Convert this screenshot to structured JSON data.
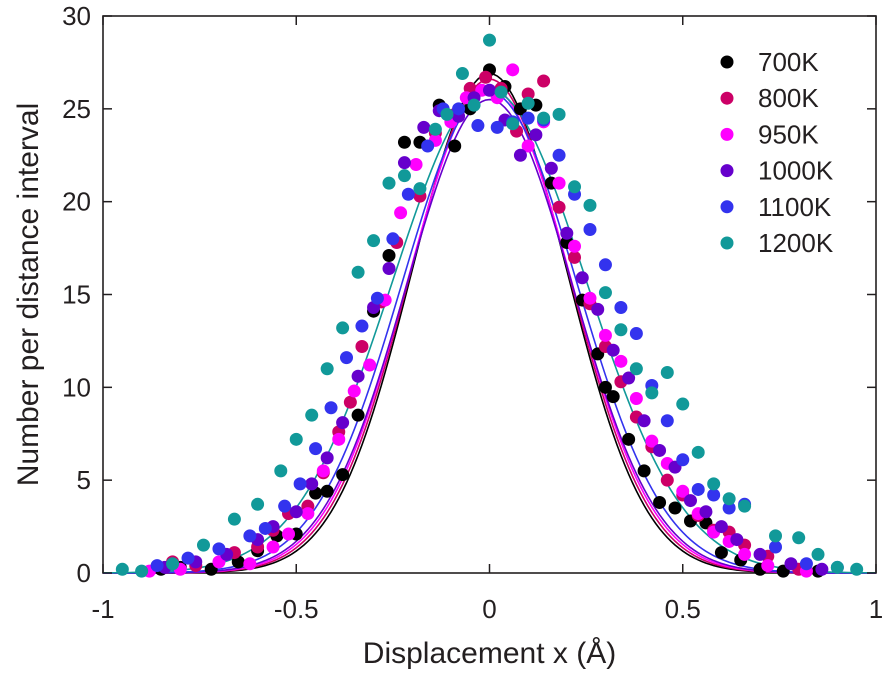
{
  "chart_data": {
    "type": "scatter",
    "xlabel": "Displacement x (Å)",
    "ylabel": "Number per distance interval",
    "xlim": [
      -1,
      1
    ],
    "ylim": [
      0,
      30
    ],
    "xticks": [
      "-1",
      "-0.5",
      "0",
      "0.5",
      "1"
    ],
    "yticks": [
      "0",
      "5",
      "10",
      "15",
      "20",
      "25",
      "30"
    ],
    "grid": false,
    "legend_position": "top-right",
    "series": [
      {
        "name": "700K",
        "color": "#000000",
        "amplitude": 26.9,
        "sigma": 0.2,
        "x": [
          -0.85,
          -0.8,
          -0.72,
          -0.65,
          -0.6,
          -0.55,
          -0.5,
          -0.45,
          -0.42,
          -0.38,
          -0.34,
          -0.3,
          -0.26,
          -0.22,
          -0.18,
          -0.13,
          -0.09,
          -0.05,
          0.0,
          0.04,
          0.08,
          0.12,
          0.16,
          0.2,
          0.24,
          0.28,
          0.3,
          0.32,
          0.36,
          0.4,
          0.44,
          0.48,
          0.52,
          0.56,
          0.6,
          0.65,
          0.7,
          0.76,
          0.85
        ],
        "y": [
          0.2,
          0.3,
          0.2,
          0.6,
          1.2,
          2.0,
          2.1,
          4.3,
          4.4,
          5.3,
          8.5,
          14.1,
          17.1,
          23.2,
          23.2,
          25.2,
          23.0,
          25.0,
          27.1,
          26.2,
          25.0,
          25.2,
          21.0,
          17.8,
          14.7,
          11.8,
          10.0,
          9.5,
          7.2,
          5.5,
          3.8,
          3.5,
          2.8,
          2.7,
          1.1,
          0.7,
          0.2,
          0.1,
          0.1
        ]
      },
      {
        "name": "800K",
        "color": "#cc0066",
        "amplitude": 26.6,
        "sigma": 0.205,
        "x": [
          -0.82,
          -0.76,
          -0.66,
          -0.6,
          -0.56,
          -0.52,
          -0.47,
          -0.43,
          -0.39,
          -0.36,
          -0.33,
          -0.28,
          -0.24,
          -0.18,
          -0.14,
          -0.09,
          -0.05,
          -0.01,
          0.03,
          0.07,
          0.1,
          0.14,
          0.18,
          0.22,
          0.26,
          0.3,
          0.34,
          0.38,
          0.42,
          0.46,
          0.5,
          0.54,
          0.58,
          0.62,
          0.66,
          0.72,
          0.8
        ],
        "y": [
          0.6,
          0.4,
          1.1,
          1.4,
          2.3,
          3.2,
          3.6,
          5.4,
          7.6,
          9.2,
          12.2,
          14.6,
          17.8,
          20.3,
          23.7,
          24.7,
          26.1,
          26.7,
          26.1,
          23.8,
          25.8,
          26.5,
          19.7,
          17.0,
          14.5,
          12.2,
          10.3,
          8.4,
          6.8,
          5.0,
          4.2,
          3.1,
          2.3,
          2.2,
          1.5,
          0.9,
          0.2
        ]
      },
      {
        "name": "950K",
        "color": "#ff00ff",
        "amplitude": 26.2,
        "sigma": 0.21,
        "x": [
          -0.88,
          -0.8,
          -0.7,
          -0.62,
          -0.56,
          -0.52,
          -0.47,
          -0.43,
          -0.39,
          -0.35,
          -0.31,
          -0.27,
          -0.23,
          -0.19,
          -0.14,
          -0.1,
          -0.06,
          -0.02,
          0.02,
          0.06,
          0.1,
          0.14,
          0.18,
          0.22,
          0.26,
          0.3,
          0.34,
          0.38,
          0.42,
          0.46,
          0.5,
          0.54,
          0.58,
          0.62,
          0.66,
          0.72,
          0.82
        ],
        "y": [
          0.1,
          0.2,
          0.6,
          0.5,
          1.4,
          2.1,
          3.2,
          5.5,
          7.2,
          9.8,
          11.2,
          14.7,
          19.4,
          22.0,
          23.3,
          24.3,
          25.6,
          26.0,
          25.6,
          27.1,
          23.0,
          24.3,
          21.0,
          17.6,
          14.8,
          12.8,
          11.4,
          9.4,
          7.1,
          5.9,
          4.4,
          3.2,
          2.2,
          1.7,
          1.0,
          0.4,
          0.1
        ]
      },
      {
        "name": "1000K",
        "color": "#6600cc",
        "amplitude": 25.5,
        "sigma": 0.215,
        "x": [
          -0.84,
          -0.76,
          -0.68,
          -0.6,
          -0.56,
          -0.5,
          -0.46,
          -0.42,
          -0.38,
          -0.34,
          -0.3,
          -0.26,
          -0.22,
          -0.17,
          -0.13,
          -0.08,
          -0.04,
          0.0,
          0.04,
          0.08,
          0.12,
          0.16,
          0.2,
          0.24,
          0.28,
          0.32,
          0.36,
          0.4,
          0.44,
          0.48,
          0.52,
          0.56,
          0.6,
          0.64,
          0.7,
          0.78,
          0.86
        ],
        "y": [
          0.3,
          0.6,
          1.0,
          1.8,
          2.5,
          3.3,
          4.8,
          6.2,
          8.1,
          10.6,
          14.3,
          16.4,
          22.1,
          24.0,
          24.9,
          24.6,
          25.6,
          26.0,
          24.4,
          22.5,
          23.6,
          21.8,
          18.3,
          15.9,
          14.2,
          12.0,
          10.5,
          8.2,
          6.6,
          5.7,
          3.9,
          3.3,
          2.5,
          1.8,
          1.0,
          0.5,
          0.2
        ]
      },
      {
        "name": "1100K",
        "color": "#3333ee",
        "amplitude": 25.9,
        "sigma": 0.225,
        "x": [
          -0.86,
          -0.78,
          -0.7,
          -0.62,
          -0.58,
          -0.53,
          -0.49,
          -0.45,
          -0.41,
          -0.37,
          -0.33,
          -0.29,
          -0.25,
          -0.21,
          -0.16,
          -0.12,
          -0.08,
          -0.03,
          0.02,
          0.06,
          0.1,
          0.14,
          0.18,
          0.22,
          0.26,
          0.3,
          0.34,
          0.38,
          0.42,
          0.46,
          0.5,
          0.54,
          0.58,
          0.62,
          0.66,
          0.74,
          0.82,
          0.9
        ],
        "y": [
          0.4,
          0.8,
          1.3,
          2.0,
          2.4,
          3.6,
          4.8,
          6.7,
          8.9,
          11.6,
          13.3,
          14.8,
          18.0,
          20.4,
          23.0,
          25.0,
          25.0,
          24.1,
          24.0,
          24.3,
          24.5,
          24.4,
          22.5,
          20.4,
          18.5,
          16.6,
          14.3,
          12.9,
          10.1,
          8.2,
          6.1,
          4.5,
          4.2,
          3.5,
          3.7,
          1.4,
          0.5,
          0.3
        ]
      },
      {
        "name": "1200K",
        "color": "#119999",
        "amplitude": 26.0,
        "sigma": 0.25,
        "x": [
          -0.95,
          -0.9,
          -0.82,
          -0.74,
          -0.66,
          -0.6,
          -0.54,
          -0.5,
          -0.46,
          -0.42,
          -0.38,
          -0.34,
          -0.3,
          -0.26,
          -0.22,
          -0.18,
          -0.14,
          -0.11,
          -0.07,
          -0.04,
          0.0,
          0.03,
          0.06,
          0.1,
          0.14,
          0.18,
          0.22,
          0.26,
          0.3,
          0.34,
          0.38,
          0.42,
          0.46,
          0.5,
          0.54,
          0.58,
          0.62,
          0.66,
          0.74,
          0.8,
          0.85,
          0.9,
          0.95
        ],
        "y": [
          0.2,
          0.1,
          0.5,
          1.5,
          2.9,
          3.7,
          5.5,
          7.2,
          8.5,
          11.0,
          13.2,
          16.2,
          17.9,
          21.0,
          21.4,
          20.7,
          23.9,
          24.7,
          26.9,
          25.2,
          28.7,
          25.9,
          24.2,
          25.3,
          24.5,
          24.7,
          20.8,
          19.8,
          15.1,
          13.1,
          11.0,
          9.7,
          10.8,
          9.1,
          6.5,
          4.8,
          4.0,
          3.6,
          2.0,
          1.9,
          1.0,
          0.3,
          0.2
        ]
      }
    ]
  }
}
